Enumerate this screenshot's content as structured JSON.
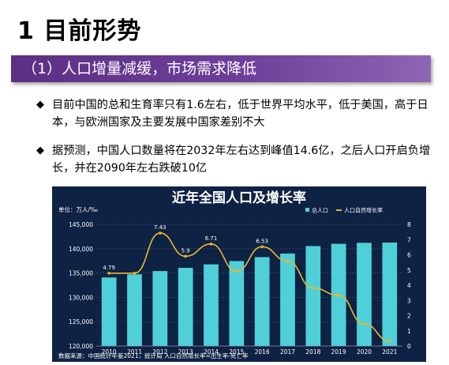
{
  "page": {
    "title": "1 目前形势",
    "banner": "（1）人口增量减缓，市场需求降低",
    "bullets": [
      "目前中国的总和生育率只有1.6左右，低于世界平均水平，低于美国，高于日本，与欧洲国家及主要发展中国家差别不大",
      "据预测，中国人口数量将在2032年左右达到峰值14.6亿，之后人口开启负增长，并在2090年左右跌破10亿"
    ]
  },
  "icons": {
    "bullet": "diamond-bullet-icon",
    "bullet_glyph": "◆"
  },
  "colors": {
    "banner": "#6a3b94",
    "chart_bg": "#0e2244",
    "bar": "#4fd0d8",
    "line": "#e8b830"
  },
  "chart_data": {
    "type": "bar",
    "title": "近年全国人口及增长率",
    "unit_label": "单位：万人/‰",
    "categories": [
      "2010",
      "2011",
      "2012",
      "2013",
      "2014",
      "2015",
      "2016",
      "2017",
      "2018",
      "2019",
      "2020",
      "2021"
    ],
    "series": [
      {
        "name": "总人口",
        "type": "bar",
        "axis": "left",
        "values": [
          134091,
          134735,
          135404,
          136072,
          136782,
          137462,
          138271,
          139008,
          140541,
          141008,
          141212,
          141260
        ]
      },
      {
        "name": "人口自然增长率",
        "type": "line",
        "axis": "right",
        "values": [
          4.79,
          4.79,
          7.43,
          5.9,
          6.71,
          4.93,
          6.53,
          5.58,
          3.81,
          3.34,
          1.45,
          0.34
        ]
      }
    ],
    "data_labels": [
      {
        "index": 0,
        "text": "4.79"
      },
      {
        "index": 2,
        "text": "7.43"
      },
      {
        "index": 3,
        "text": "5.9"
      },
      {
        "index": 4,
        "text": "6.71"
      },
      {
        "index": 6,
        "text": "6.53"
      }
    ],
    "left_axis": {
      "ylim": [
        120000,
        145000
      ],
      "ticks": [
        "120,000",
        "125,000",
        "130,000",
        "135,000",
        "140,000",
        "145,000"
      ]
    },
    "right_axis": {
      "ylim": [
        0,
        8
      ],
      "ticks": [
        "0",
        "1",
        "2",
        "3",
        "4",
        "5",
        "6",
        "7",
        "8"
      ]
    },
    "grid": true,
    "legend_position": "top-right",
    "source": "数据来源：中国统计年鉴2021，统计局  人口自然增长率=出生率-死亡率"
  }
}
